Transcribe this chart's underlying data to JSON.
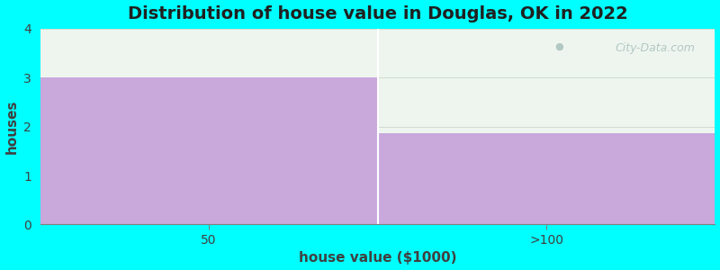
{
  "title": "Distribution of house value in Douglas, OK in 2022",
  "xlabel": "house value ($1000)",
  "ylabel": "houses",
  "categories": [
    "50",
    ">100"
  ],
  "values": [
    3,
    1.87
  ],
  "bar_color": "#C9A8DC",
  "bar_edge_color": "none",
  "background_color": "#00FFFF",
  "plot_bg_color": "#EEF5EE",
  "ylim": [
    0,
    4
  ],
  "yticks": [
    0,
    1,
    2,
    3,
    4
  ],
  "title_fontsize": 14,
  "label_fontsize": 11,
  "tick_fontsize": 10,
  "watermark_text": "City-Data.com",
  "watermark_color": "#A8C0BC",
  "divider_color": "#FFFFFF",
  "spine_color": "#808080"
}
